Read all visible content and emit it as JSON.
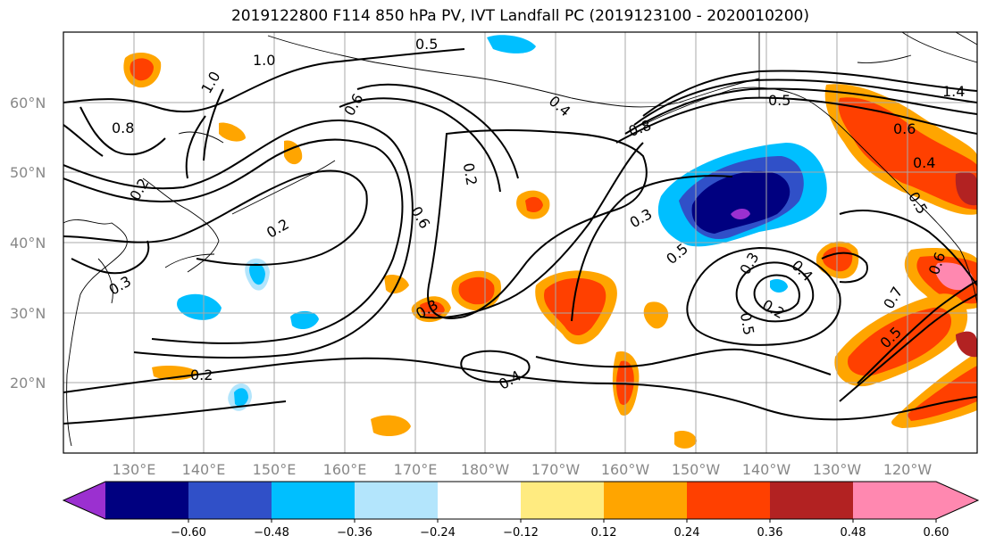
{
  "title": "2019122800 F114 850 hPa PV, IVT Landfall PC (2019123100 - 2020010200)",
  "map": {
    "lat_labels": [
      "60°N",
      "50°N",
      "40°N",
      "30°N",
      "20°N"
    ],
    "lon_labels": [
      "130°E",
      "140°E",
      "150°E",
      "160°E",
      "170°E",
      "180°W",
      "170°W",
      "160°W",
      "150°W",
      "140°W",
      "130°W",
      "120°W"
    ],
    "contour_labels": [
      "0.5",
      "1.0",
      "1.0",
      "0.8",
      "0.6",
      "0.4",
      "0.2",
      "0.2",
      "0.8",
      "0.5",
      "1.4",
      "0.6",
      "0.4",
      "0.5",
      "0.3",
      "0.5",
      "0.3",
      "0.4",
      "0.2",
      "0.5",
      "0.7",
      "0.5",
      "0.2",
      "0.3",
      "0.4",
      "0.6",
      "0.2",
      "0.6",
      "0.3"
    ]
  },
  "colorbar": {
    "ticks": [
      "−0.60",
      "−0.48",
      "−0.36",
      "−0.24",
      "−0.12",
      "0.12",
      "0.24",
      "0.36",
      "0.48",
      "0.60"
    ],
    "colors": [
      "#9b30d0",
      "#000080",
      "#3050c8",
      "#00bfff",
      "#b3e5fc",
      "#ffffff",
      "#ffeb80",
      "#ffa500",
      "#ff4000",
      "#b22222",
      "#ff88b0",
      "#ff88b0"
    ]
  }
}
